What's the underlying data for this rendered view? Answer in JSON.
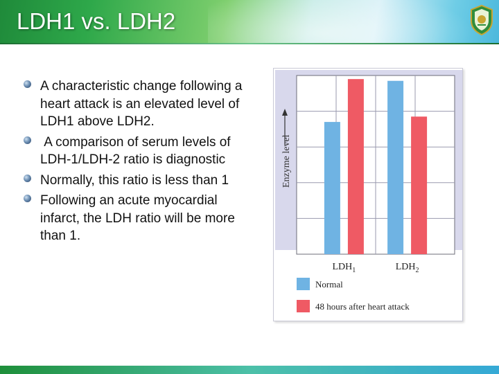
{
  "slide": {
    "title": "LDH1 vs. LDH2",
    "bullets": [
      "A characteristic change following a heart attack is an elevated level of LDH1 above LDH2.",
      " A comparison of serum levels of LDH-1/LDH-2 ratio is diagnostic",
      "Normally, this ratio is less than 1",
      "Following an acute myocardial infarct, the LDH ratio will be more than 1."
    ]
  },
  "colors": {
    "normal": "#6fb3e3",
    "heart_attack": "#ef5a64",
    "plot_bg": "#d8d8ec"
  },
  "chart_data": {
    "type": "bar",
    "ylabel": "Enzyme level",
    "categories": [
      {
        "base": "LDH",
        "sub": "1"
      },
      {
        "base": "LDH",
        "sub": "2"
      }
    ],
    "series": [
      {
        "name": "Normal",
        "values": [
          0.74,
          0.97
        ]
      },
      {
        "name": "48 hours after heart attack",
        "values": [
          0.98,
          0.77
        ]
      }
    ],
    "ylim": [
      0,
      1
    ],
    "grid": true,
    "legend": "bottom"
  }
}
